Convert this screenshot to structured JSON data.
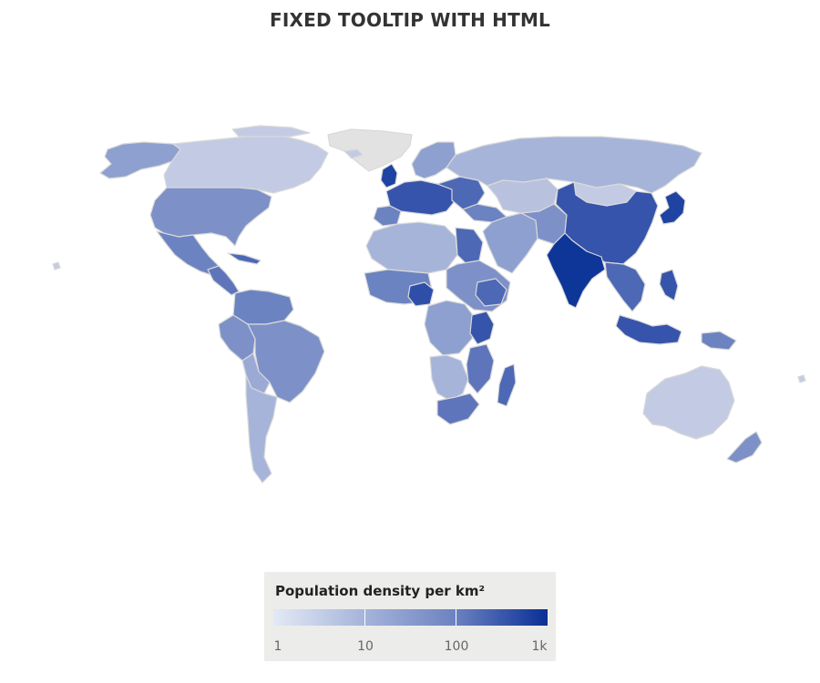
{
  "title": "FIXED TOOLTIP WITH HTML",
  "legend": {
    "title": "Population density per km²",
    "ticks": [
      "1",
      "10",
      "100",
      "1k"
    ],
    "scale": "log",
    "range": [
      1,
      1000
    ],
    "color_min": "#e3e9f5",
    "color_max": "#0a2f96"
  },
  "colors": {
    "background": "#ffffff",
    "country_border": "#d9d9d9",
    "no_data": "#e2e2e2",
    "legend_background": "#ececea"
  }
}
